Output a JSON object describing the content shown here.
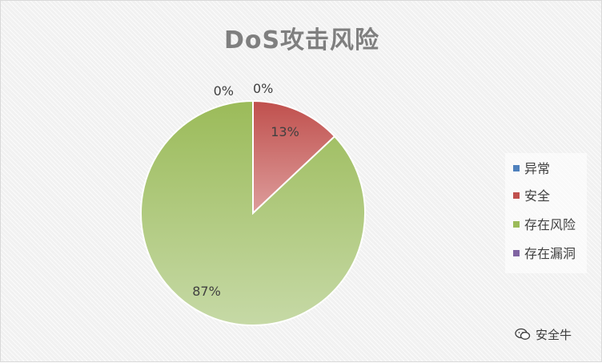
{
  "chart_data": {
    "type": "pie",
    "title": "DoS攻击风险",
    "categories": [
      "异常",
      "安全",
      "存在风险",
      "存在漏洞"
    ],
    "values": [
      0,
      13,
      87,
      0
    ],
    "labels": [
      "0%",
      "13%",
      "87%",
      "0%"
    ],
    "colors": [
      "#4f81bd",
      "#c0504d",
      "#9bbb59",
      "#8064a2"
    ],
    "legend_position": "right"
  },
  "watermark": {
    "text": "安全牛",
    "icon": "wechat-icon"
  }
}
